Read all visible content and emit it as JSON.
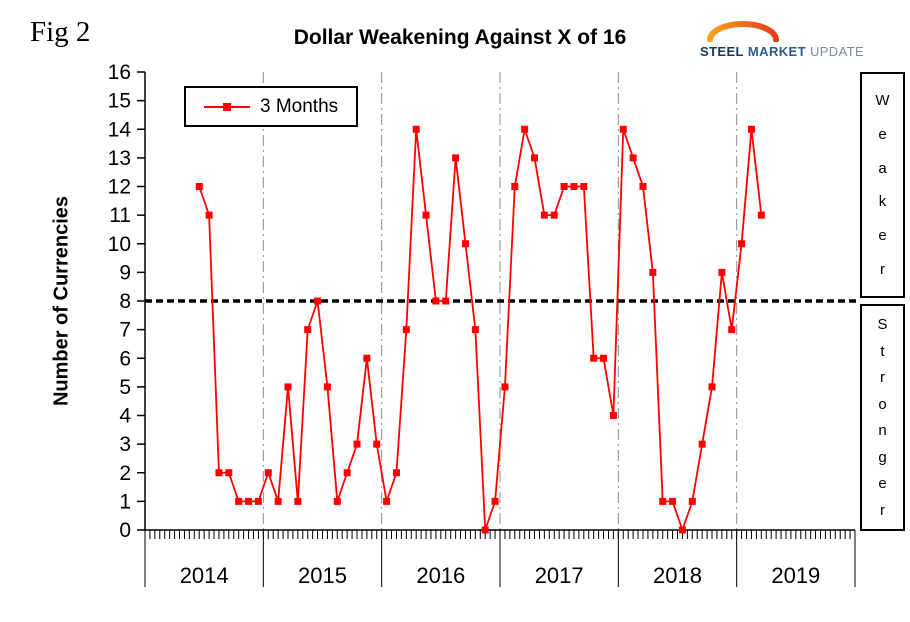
{
  "fig_label": "Fig 2",
  "logo": {
    "steel": "STEEL",
    "market": "MARKET",
    "update": "UPDATE"
  },
  "chart_data": {
    "type": "line",
    "title": "Dollar Weakening Against X of 16",
    "ylabel": "Number of Currencies",
    "ylim": [
      0,
      16
    ],
    "y_ticks": [
      0,
      1,
      2,
      3,
      4,
      5,
      6,
      7,
      8,
      9,
      10,
      11,
      12,
      13,
      14,
      15,
      16
    ],
    "x_years": [
      "2014",
      "2015",
      "2016",
      "2017",
      "2018",
      "2019"
    ],
    "x_frequency": "monthly",
    "grid": {
      "vertical_year_lines": true,
      "horizontal_lines": false
    },
    "legend": {
      "label": "3 Months",
      "position": "top-left"
    },
    "reference_line": {
      "value": 8,
      "color": "#000000",
      "style": "dashed"
    },
    "right_labels": [
      {
        "text": "Weaker",
        "y_range": [
          8,
          16
        ]
      },
      {
        "text": "Stronger",
        "y_range": [
          0,
          8
        ]
      }
    ],
    "series": [
      {
        "name": "3 Months",
        "color": "#ff0000",
        "marker": "square",
        "x_start": "2014-06",
        "start_month_index": 5,
        "values": [
          12,
          11,
          2,
          2,
          1,
          1,
          1,
          2,
          1,
          5,
          1,
          7,
          8,
          5,
          1,
          2,
          3,
          6,
          3,
          1,
          2,
          7,
          14,
          11,
          8,
          8,
          13,
          10,
          7,
          0,
          1,
          5,
          12,
          14,
          13,
          11,
          11,
          12,
          12,
          12,
          6,
          6,
          4,
          14,
          13,
          12,
          9,
          1,
          1,
          0,
          1,
          3,
          5,
          9,
          7,
          10,
          14,
          11
        ]
      }
    ]
  }
}
